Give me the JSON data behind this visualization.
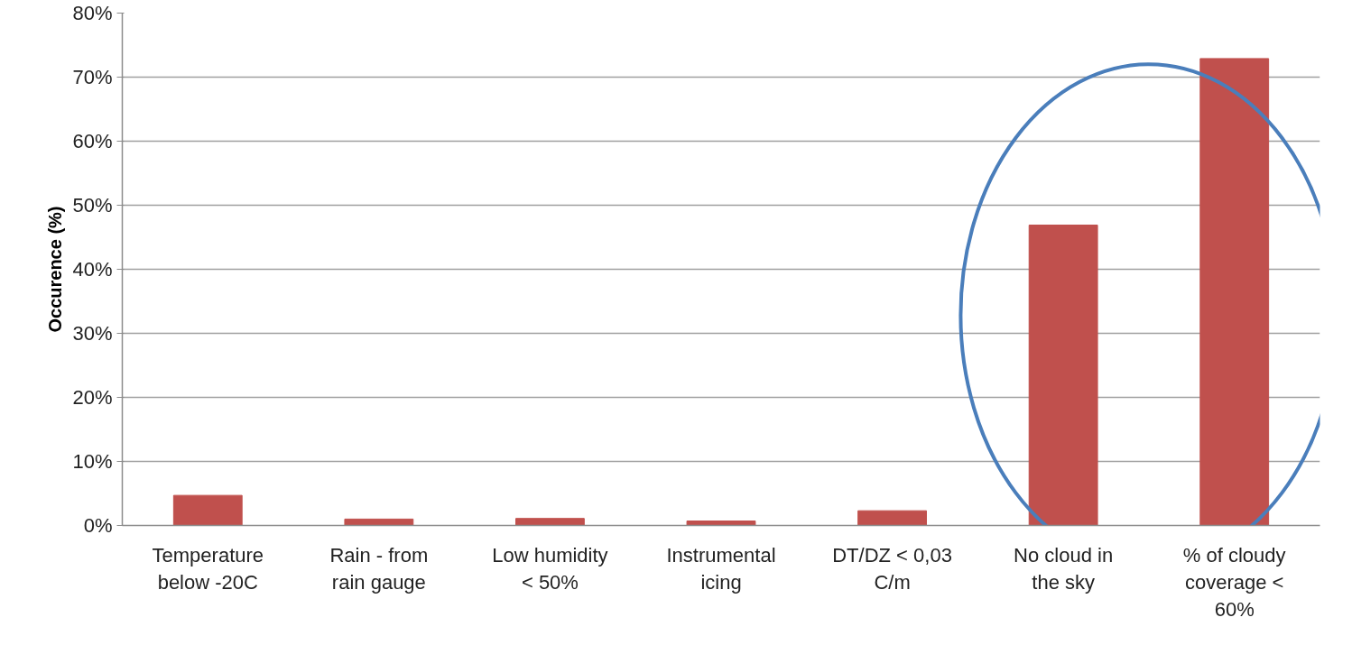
{
  "chart_data": {
    "type": "bar",
    "ylabel": "Occurence (%)",
    "categories": [
      "Temperature below -20C",
      "Rain - from rain gauge",
      "Low humidity < 50%",
      "Instrumental icing",
      "DT/DZ < 0,03 C/m",
      "No cloud in the sky",
      "% of cloudy coverage < 60%"
    ],
    "values": [
      4.7,
      1.0,
      1.1,
      0.7,
      2.3,
      46.9,
      72.9
    ],
    "color": "#c0504d",
    "ylim": [
      0,
      80
    ],
    "yticks": [
      {
        "value": 0,
        "label": "0%"
      },
      {
        "value": 10,
        "label": "10%"
      },
      {
        "value": 20,
        "label": "20%"
      },
      {
        "value": 30,
        "label": "30%"
      },
      {
        "value": 40,
        "label": "40%"
      },
      {
        "value": 50,
        "label": "50%"
      },
      {
        "value": 60,
        "label": "60%"
      },
      {
        "value": 70,
        "label": "70%"
      },
      {
        "value": 80,
        "label": "80%"
      }
    ],
    "grid": "y"
  }
}
